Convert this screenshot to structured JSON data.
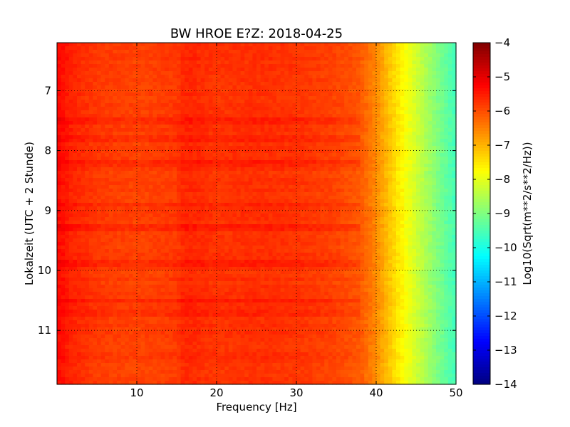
{
  "chart_data": {
    "type": "heatmap",
    "title": "BW HROE E?Z: 2018-04-25",
    "xlabel": "Frequency [Hz]",
    "ylabel": "Lokalzeit (UTC + 2 Stunde)",
    "xlim": [
      0,
      50
    ],
    "ylim": [
      6.2,
      11.9
    ],
    "y_inverted": true,
    "xticks": [
      10,
      20,
      30,
      40,
      50
    ],
    "yticks": [
      7,
      8,
      9,
      10,
      11
    ],
    "grid": true,
    "colormap": "jet",
    "colorbar": {
      "label": "Log10(Sqrt(m**2/s**2/Hz))",
      "min": -14,
      "max": -4,
      "ticks": [
        -4,
        -5,
        -6,
        -7,
        -8,
        -9,
        -10,
        -11,
        -12,
        -13,
        -14
      ]
    },
    "spectrum_profile": [
      {
        "freq": 0,
        "value": -5.3
      },
      {
        "freq": 2,
        "value": -5.6
      },
      {
        "freq": 5,
        "value": -5.8
      },
      {
        "freq": 10,
        "value": -5.9
      },
      {
        "freq": 15,
        "value": -5.8
      },
      {
        "freq": 16,
        "value": -5.6
      },
      {
        "freq": 20,
        "value": -5.75
      },
      {
        "freq": 25,
        "value": -5.7
      },
      {
        "freq": 30,
        "value": -5.75
      },
      {
        "freq": 35,
        "value": -5.9
      },
      {
        "freq": 38,
        "value": -6.1
      },
      {
        "freq": 40,
        "value": -6.6
      },
      {
        "freq": 42,
        "value": -7.3
      },
      {
        "freq": 44,
        "value": -7.9
      },
      {
        "freq": 46,
        "value": -8.5
      },
      {
        "freq": 48,
        "value": -9.1
      },
      {
        "freq": 50,
        "value": -9.6
      }
    ],
    "loud_time_bands_hour": [
      7.5,
      7.8,
      8.2,
      8.9,
      9.3,
      9.9,
      10.5,
      10.7
    ]
  }
}
